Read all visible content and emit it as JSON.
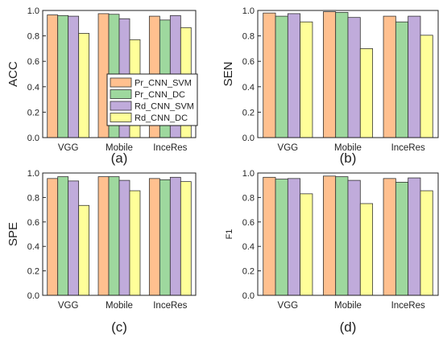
{
  "colors": {
    "Pr_CNN_SVM": "#FFC08F",
    "Pr_CNN_DC": "#9ED89E",
    "Rd_CNN_SVM": "#C0ABDB",
    "Rd_CNN_DC": "#FFFF99",
    "edge": "#333333"
  },
  "chart_data": [
    {
      "type": "bar",
      "panel_label": "(a)",
      "ylabel": "ACC",
      "categories": [
        "VGG",
        "Mobile",
        "InceRes"
      ],
      "ylim": [
        0,
        1.0
      ],
      "yticks": [
        "0.0",
        "0.2",
        "0.4",
        "0.6",
        "0.8",
        "1.0"
      ],
      "legend": "inside-center-right",
      "series": [
        {
          "name": "Pr_CNN_SVM",
          "values": [
            0.965,
            0.975,
            0.955
          ]
        },
        {
          "name": "Pr_CNN_DC",
          "values": [
            0.96,
            0.97,
            0.925
          ]
        },
        {
          "name": "Rd_CNN_SVM",
          "values": [
            0.955,
            0.935,
            0.96
          ]
        },
        {
          "name": "Rd_CNN_DC",
          "values": [
            0.82,
            0.77,
            0.865
          ]
        }
      ]
    },
    {
      "type": "bar",
      "panel_label": "(b)",
      "ylabel": "SEN",
      "categories": [
        "VGG",
        "Mobile",
        "InceRes"
      ],
      "ylim": [
        0,
        1.0
      ],
      "yticks": [
        "0.0",
        "0.2",
        "0.4",
        "0.6",
        "0.8",
        "1.0"
      ],
      "series": [
        {
          "name": "Pr_CNN_SVM",
          "values": [
            0.98,
            0.99,
            0.955
          ]
        },
        {
          "name": "Pr_CNN_DC",
          "values": [
            0.955,
            0.985,
            0.91
          ]
        },
        {
          "name": "Rd_CNN_SVM",
          "values": [
            0.975,
            0.945,
            0.955
          ]
        },
        {
          "name": "Rd_CNN_DC",
          "values": [
            0.91,
            0.7,
            0.805
          ]
        }
      ]
    },
    {
      "type": "bar",
      "panel_label": "(c)",
      "ylabel": "SPE",
      "categories": [
        "VGG",
        "Mobile",
        "InceRes"
      ],
      "ylim": [
        0,
        1.0
      ],
      "yticks": [
        "0.0",
        "0.2",
        "0.4",
        "0.6",
        "0.8",
        "1.0"
      ],
      "series": [
        {
          "name": "Pr_CNN_SVM",
          "values": [
            0.955,
            0.97,
            0.955
          ]
        },
        {
          "name": "Pr_CNN_DC",
          "values": [
            0.97,
            0.97,
            0.945
          ]
        },
        {
          "name": "Rd_CNN_SVM",
          "values": [
            0.935,
            0.94,
            0.965
          ]
        },
        {
          "name": "Rd_CNN_DC",
          "values": [
            0.735,
            0.855,
            0.93
          ]
        }
      ]
    },
    {
      "type": "bar",
      "panel_label": "(d)",
      "ylabel": "F1",
      "categories": [
        "VGG",
        "Mobile",
        "InceRes"
      ],
      "ylim": [
        0,
        1.0
      ],
      "yticks": [
        "0.0",
        "0.2",
        "0.4",
        "0.6",
        "0.8",
        "1.0"
      ],
      "series": [
        {
          "name": "Pr_CNN_SVM",
          "values": [
            0.965,
            0.975,
            0.955
          ]
        },
        {
          "name": "Pr_CNN_DC",
          "values": [
            0.95,
            0.97,
            0.925
          ]
        },
        {
          "name": "Rd_CNN_SVM",
          "values": [
            0.955,
            0.94,
            0.96
          ]
        },
        {
          "name": "Rd_CNN_DC",
          "values": [
            0.83,
            0.75,
            0.855
          ]
        }
      ]
    }
  ]
}
